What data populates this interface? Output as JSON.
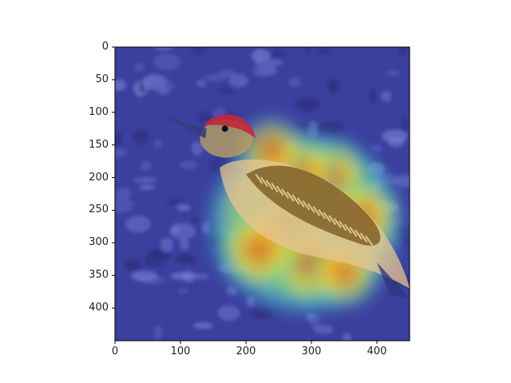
{
  "chart_data": {
    "type": "heatmap",
    "title": "",
    "xlabel": "",
    "ylabel": "",
    "xlim": [
      0,
      450
    ],
    "ylim": [
      450,
      0
    ],
    "x_ticks": [
      0,
      100,
      200,
      300,
      400
    ],
    "y_ticks": [
      0,
      50,
      100,
      150,
      200,
      250,
      300,
      350,
      400
    ],
    "x_tick_labels": [
      "0",
      "100",
      "200",
      "300",
      "400"
    ],
    "y_tick_labels": [
      "0",
      "50",
      "100",
      "150",
      "200",
      "250",
      "300",
      "350",
      "400"
    ],
    "grid": false,
    "legend": "none",
    "colormap": "jet",
    "image_subject": "red-bellied woodpecker standing on leaf-covered ground",
    "heat_hotspots": [
      {
        "x": 260,
        "y": 280,
        "intensity": 1.0
      },
      {
        "x": 300,
        "y": 330,
        "intensity": 0.9
      },
      {
        "x": 220,
        "y": 310,
        "intensity": 0.8
      },
      {
        "x": 330,
        "y": 200,
        "intensity": 0.75
      },
      {
        "x": 280,
        "y": 190,
        "intensity": 0.7
      },
      {
        "x": 380,
        "y": 260,
        "intensity": 0.65
      },
      {
        "x": 240,
        "y": 160,
        "intensity": 0.55
      },
      {
        "x": 350,
        "y": 345,
        "intensity": 0.6
      }
    ],
    "colors": {
      "background": "#3b3f9e",
      "cold": "#2a2f8f",
      "hot": "#e03020",
      "bird_red": "#c2283a",
      "bird_body": "#e8c490",
      "axis": "#000000"
    }
  }
}
